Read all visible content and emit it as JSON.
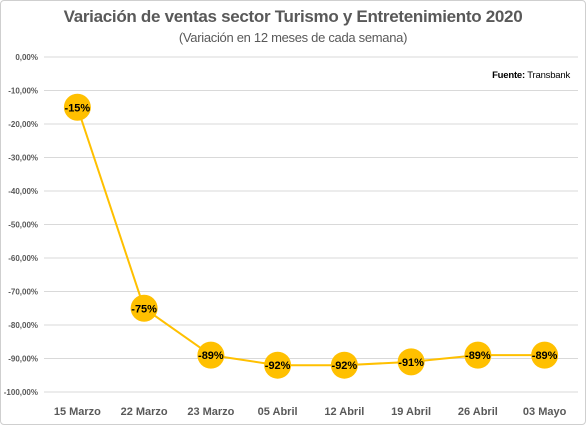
{
  "chart_data": {
    "type": "line",
    "title": "Variación de ventas sector Turismo y Entretenimiento 2020",
    "subtitle": "(Variación en 12 meses de cada semana)",
    "source_label": "Fuente:",
    "source_value": "Transbank",
    "categories": [
      "15 Marzo",
      "22 Marzo",
      "23 Marzo",
      "05 Abril",
      "12 Abril",
      "19 Abril",
      "26 Abril",
      "03 Mayo"
    ],
    "values": [
      -15,
      -75,
      -89,
      -92,
      -92,
      -91,
      -89,
      -89
    ],
    "data_labels": [
      "-15%",
      "-75%",
      "-89%",
      "-92%",
      "-92%",
      "-91%",
      "-89%",
      "-89%"
    ],
    "y_ticks": [
      "0,00%",
      "-10,00%",
      "-20,00%",
      "-30,00%",
      "-40,00%",
      "-50,00%",
      "-60,00%",
      "-70,00%",
      "-80,00%",
      "-90,00%",
      "-100,00%"
    ],
    "ylim": [
      -100,
      0
    ],
    "grid": true,
    "colors": {
      "line": "#FFC000",
      "marker": "#FFC000",
      "grid": "#d9d9d9"
    }
  }
}
